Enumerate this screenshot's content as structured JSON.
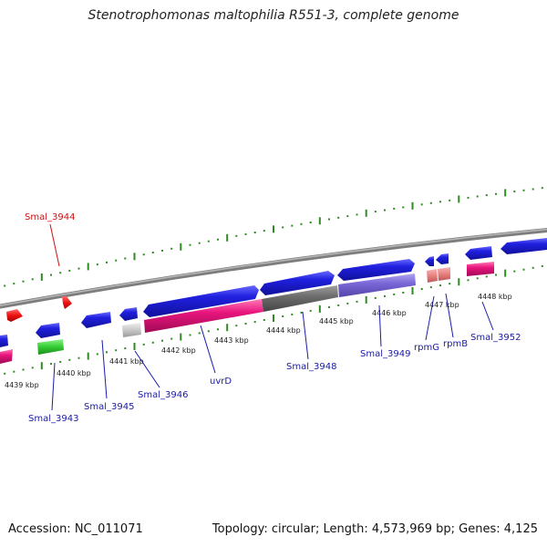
{
  "title": "Stenotrophomonas maltophilia R551-3, complete genome",
  "accession": "Accession: NC_011071",
  "topology": "Topology: circular; Length: 4,573,969 bp; Genes: 4,125",
  "colors": {
    "backbone": "#8a8a8a",
    "tick": "#2e8b22",
    "gene_label": "#1a1aa8",
    "highlight_label": "#cc1111",
    "blue": "#1f1fd8",
    "magenta": "#e8157c",
    "gray_dark": "#6e6e6e",
    "purple": "#7b68d8",
    "salmon": "#e88080",
    "light_gray": "#c8c8c8",
    "green": "#33cc33",
    "red": "#ee1111"
  },
  "kbp_labels": [
    "4439 kbp",
    "4440 kbp",
    "4441 kbp",
    "4442 kbp",
    "4443 kbp",
    "4444 kbp",
    "4445 kbp",
    "4446 kbp",
    "4447 kbp",
    "4448 kbp"
  ],
  "gene_labels": {
    "smal_3944": "Smal_3944",
    "smal_3943": "Smal_3943",
    "smal_3945": "Smal_3945",
    "smal_3946": "Smal_3946",
    "uvrd": "uvrD",
    "smal_3948": "Smal_3948",
    "smal_3949": "Smal_3949",
    "rpmg": "rpmG",
    "rpmb": "rpmB",
    "smal_3952": "Smal_3952"
  }
}
